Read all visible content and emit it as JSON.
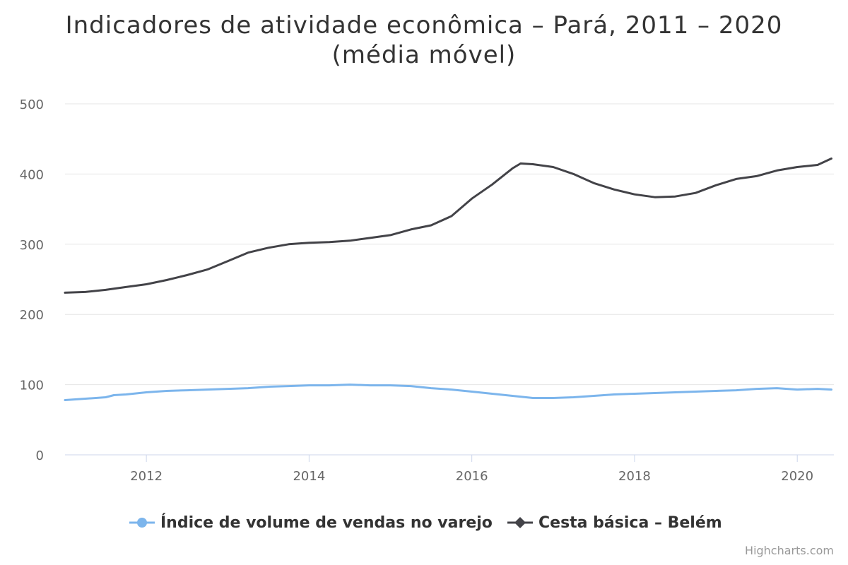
{
  "title_line1": "Indicadores de atividade econômica – Pará, 2011 – 2020",
  "title_line2": "(média móvel)",
  "credits": "Highcharts.com",
  "colors": {
    "varejo": "#7cb5ec",
    "cesta": "#434348",
    "grid": "#e6e6e6",
    "axis": "#ccd6eb",
    "tick_label": "#666666"
  },
  "chart_data": {
    "type": "line",
    "title": "Indicadores de atividade econômica – Pará, 2011 – 2020 (média móvel)",
    "xlabel": "",
    "ylabel": "",
    "xlim": [
      2011.0,
      2020.45
    ],
    "ylim": [
      0,
      500
    ],
    "x_ticks": [
      2012,
      2014,
      2016,
      2018,
      2020
    ],
    "y_ticks": [
      0,
      100,
      200,
      300,
      400,
      500
    ],
    "grid": true,
    "legend_position": "bottom-center",
    "series": [
      {
        "name": "Índice de volume de vendas no varejo",
        "color": "#7cb5ec",
        "marker": "circle",
        "points": [
          [
            2011.0,
            78
          ],
          [
            2011.25,
            80
          ],
          [
            2011.5,
            82
          ],
          [
            2011.6,
            85
          ],
          [
            2011.75,
            86
          ],
          [
            2012.0,
            89
          ],
          [
            2012.25,
            91
          ],
          [
            2012.5,
            92
          ],
          [
            2012.75,
            93
          ],
          [
            2013.0,
            94
          ],
          [
            2013.25,
            95
          ],
          [
            2013.5,
            97
          ],
          [
            2013.75,
            98
          ],
          [
            2014.0,
            99
          ],
          [
            2014.25,
            99
          ],
          [
            2014.5,
            100
          ],
          [
            2014.75,
            99
          ],
          [
            2015.0,
            99
          ],
          [
            2015.25,
            98
          ],
          [
            2015.5,
            95
          ],
          [
            2015.75,
            93
          ],
          [
            2016.0,
            90
          ],
          [
            2016.25,
            87
          ],
          [
            2016.5,
            84
          ],
          [
            2016.75,
            81
          ],
          [
            2017.0,
            81
          ],
          [
            2017.25,
            82
          ],
          [
            2017.5,
            84
          ],
          [
            2017.75,
            86
          ],
          [
            2018.0,
            87
          ],
          [
            2018.25,
            88
          ],
          [
            2018.5,
            89
          ],
          [
            2018.75,
            90
          ],
          [
            2019.0,
            91
          ],
          [
            2019.25,
            92
          ],
          [
            2019.5,
            94
          ],
          [
            2019.75,
            95
          ],
          [
            2020.0,
            93
          ],
          [
            2020.25,
            94
          ],
          [
            2020.42,
            93
          ]
        ]
      },
      {
        "name": "Cesta básica – Belém",
        "color": "#434348",
        "marker": "diamond",
        "points": [
          [
            2011.0,
            231
          ],
          [
            2011.25,
            232
          ],
          [
            2011.5,
            235
          ],
          [
            2011.75,
            239
          ],
          [
            2012.0,
            243
          ],
          [
            2012.25,
            249
          ],
          [
            2012.5,
            256
          ],
          [
            2012.75,
            264
          ],
          [
            2013.0,
            276
          ],
          [
            2013.25,
            288
          ],
          [
            2013.5,
            295
          ],
          [
            2013.75,
            300
          ],
          [
            2014.0,
            302
          ],
          [
            2014.25,
            303
          ],
          [
            2014.5,
            305
          ],
          [
            2014.75,
            309
          ],
          [
            2015.0,
            313
          ],
          [
            2015.25,
            321
          ],
          [
            2015.5,
            327
          ],
          [
            2015.75,
            340
          ],
          [
            2016.0,
            365
          ],
          [
            2016.25,
            385
          ],
          [
            2016.5,
            408
          ],
          [
            2016.6,
            415
          ],
          [
            2016.75,
            414
          ],
          [
            2017.0,
            410
          ],
          [
            2017.25,
            400
          ],
          [
            2017.5,
            387
          ],
          [
            2017.75,
            378
          ],
          [
            2018.0,
            371
          ],
          [
            2018.25,
            367
          ],
          [
            2018.5,
            368
          ],
          [
            2018.75,
            373
          ],
          [
            2019.0,
            384
          ],
          [
            2019.25,
            393
          ],
          [
            2019.5,
            397
          ],
          [
            2019.75,
            405
          ],
          [
            2020.0,
            410
          ],
          [
            2020.25,
            413
          ],
          [
            2020.42,
            422
          ]
        ]
      }
    ]
  }
}
